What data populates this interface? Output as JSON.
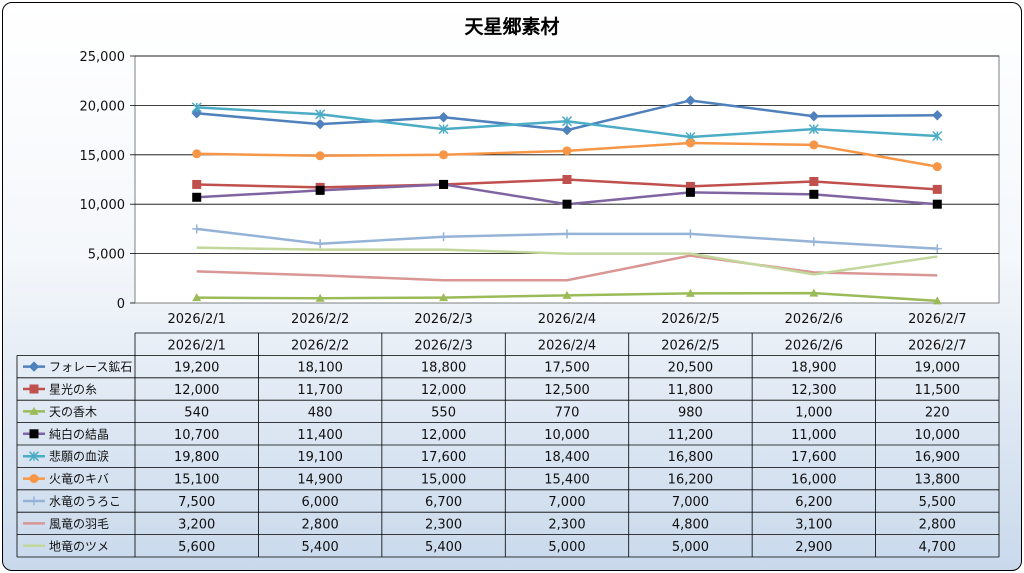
{
  "chart_data": {
    "type": "line",
    "title": "天星郷素材",
    "xlabel": "",
    "ylabel": "",
    "ylim": [
      0,
      25000
    ],
    "ytick_labels": [
      "0",
      "5,000",
      "10,000",
      "15,000",
      "20,000",
      "25,000"
    ],
    "categories": [
      "2026/2/1",
      "2026/2/2",
      "2026/2/3",
      "2026/2/4",
      "2026/2/5",
      "2026/2/6",
      "2026/2/7"
    ],
    "grid": true,
    "legend": "data-table",
    "series": [
      {
        "name": "フォレース鉱石",
        "color": "#4f81bd",
        "marker": "diamond",
        "values": [
          19200,
          18100,
          18800,
          17500,
          20500,
          18900,
          19000
        ],
        "labels": [
          "19,200",
          "18,100",
          "18,800",
          "17,500",
          "20,500",
          "18,900",
          "19,000"
        ]
      },
      {
        "name": "星光の糸",
        "color": "#c0504d",
        "marker": "square",
        "values": [
          12000,
          11700,
          12000,
          12500,
          11800,
          12300,
          11500
        ],
        "labels": [
          "12,000",
          "11,700",
          "12,000",
          "12,500",
          "11,800",
          "12,300",
          "11,500"
        ]
      },
      {
        "name": "天の香木",
        "color": "#9bbb59",
        "marker": "triangle",
        "values": [
          540,
          480,
          550,
          770,
          980,
          1000,
          220
        ],
        "labels": [
          "540",
          "480",
          "550",
          "770",
          "980",
          "1,000",
          "220"
        ]
      },
      {
        "name": "純白の結晶",
        "color": "#8064a2",
        "marker": "blacksquare",
        "values": [
          10700,
          11400,
          12000,
          10000,
          11200,
          11000,
          10000
        ],
        "labels": [
          "10,700",
          "11,400",
          "12,000",
          "10,000",
          "11,200",
          "11,000",
          "10,000"
        ]
      },
      {
        "name": "悲願の血涙",
        "color": "#4bacc6",
        "marker": "star",
        "values": [
          19800,
          19100,
          17600,
          18400,
          16800,
          17600,
          16900
        ],
        "labels": [
          "19,800",
          "19,100",
          "17,600",
          "18,400",
          "16,800",
          "17,600",
          "16,900"
        ]
      },
      {
        "name": "火竜のキバ",
        "color": "#f79646",
        "marker": "circle",
        "values": [
          15100,
          14900,
          15000,
          15400,
          16200,
          16000,
          13800
        ],
        "labels": [
          "15,100",
          "14,900",
          "15,000",
          "15,400",
          "16,200",
          "16,000",
          "13,800"
        ]
      },
      {
        "name": "水竜のうろこ",
        "color": "#95b3d7",
        "marker": "plus",
        "values": [
          7500,
          6000,
          6700,
          7000,
          7000,
          6200,
          5500
        ],
        "labels": [
          "7,500",
          "6,000",
          "6,700",
          "7,000",
          "7,000",
          "6,200",
          "5,500"
        ]
      },
      {
        "name": "風竜の羽毛",
        "color": "#d99694",
        "marker": "none",
        "values": [
          3200,
          2800,
          2300,
          2300,
          4800,
          3100,
          2800
        ],
        "labels": [
          "3,200",
          "2,800",
          "2,300",
          "2,300",
          "4,800",
          "3,100",
          "2,800"
        ]
      },
      {
        "name": "地竜のツメ",
        "color": "#c3d69b",
        "marker": "none",
        "values": [
          5600,
          5400,
          5400,
          5000,
          5000,
          2900,
          4700
        ],
        "labels": [
          "5,600",
          "5,400",
          "5,400",
          "5,000",
          "5,000",
          "2,900",
          "4,700"
        ]
      }
    ]
  }
}
